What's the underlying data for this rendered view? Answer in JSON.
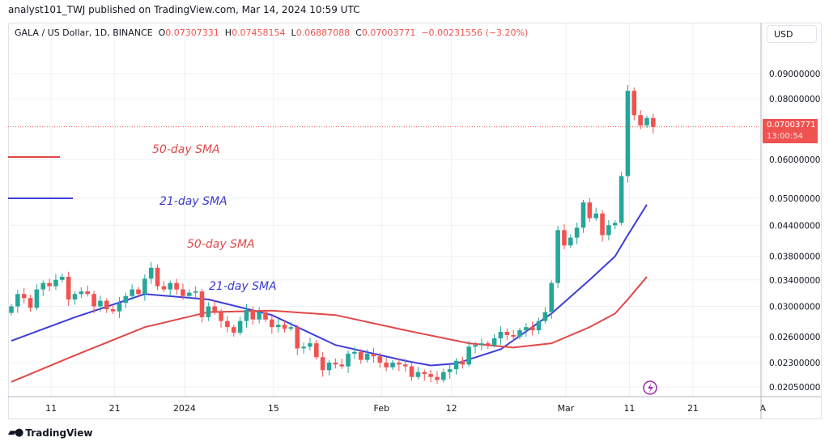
{
  "publisher": "analyst101_TWJ published on TradingView.com, Mar 14, 2024 10:59 UTC",
  "legend": {
    "symbol": "GALA / US Dollar, 1D, BINANCE",
    "o_label": "O",
    "o": "0.07307331",
    "h_label": "H",
    "h": "0.07458154",
    "l_label": "L",
    "l": "0.06887088",
    "c_label": "C",
    "c": "0.07003771",
    "change": "−0.00231556 (−3.20%)"
  },
  "currency": "USD",
  "last_price": {
    "value": "0.07003771",
    "countdown": "13:00:54"
  },
  "footer_brand": "TradingView",
  "colors": {
    "up": "#26a69a",
    "down": "#ef5350",
    "sma21": "#3d3ddb",
    "sma50": "#e04848",
    "grid": "#eef0f4"
  },
  "annotations": [
    {
      "text": "50-day SMA",
      "color": "#e04848"
    },
    {
      "text": "21-day SMA",
      "color": "#3a3acf"
    },
    {
      "text": "50-day SMA",
      "color": "#e04848"
    },
    {
      "text": "21-day SMA",
      "color": "#3a3acf"
    }
  ],
  "chart_data": {
    "type": "candlestick",
    "title": "GALA / US Dollar, 1D, BINANCE",
    "yscale": "log",
    "ylim": [
      0.0195,
      0.1
    ],
    "y_ticks": [
      "0.09000000",
      "0.08000000",
      "0.06000000",
      "0.05000000",
      "0.04400000",
      "0.03800000",
      "0.03400000",
      "0.03000000",
      "0.02600000",
      "0.02300000",
      "0.02050000"
    ],
    "x_ticks": [
      {
        "label": "11",
        "day": 6
      },
      {
        "label": "21",
        "day": 16
      },
      {
        "label": "2024",
        "day": 27
      },
      {
        "label": "15",
        "day": 41
      },
      {
        "label": "Feb",
        "day": 58
      },
      {
        "label": "12",
        "day": 69
      },
      {
        "label": "Mar",
        "day": 87
      },
      {
        "label": "11",
        "day": 97
      },
      {
        "label": "21",
        "day": 107
      },
      {
        "label": "A",
        "day": 118
      }
    ],
    "start_date": "2023-12-05",
    "closes": [
      0.03,
      0.0318,
      0.0312,
      0.0298,
      0.0325,
      0.0335,
      0.033,
      0.034,
      0.0345,
      0.031,
      0.0318,
      0.0322,
      0.0318,
      0.03,
      0.0308,
      0.0296,
      0.0293,
      0.0305,
      0.0315,
      0.0325,
      0.0318,
      0.0342,
      0.036,
      0.033,
      0.0325,
      0.0335,
      0.0325,
      0.0315,
      0.032,
      0.0322,
      0.0285,
      0.03,
      0.0292,
      0.028,
      0.0272,
      0.0265,
      0.028,
      0.0295,
      0.0282,
      0.0292,
      0.0282,
      0.0272,
      0.0275,
      0.027,
      0.0272,
      0.0246,
      0.0248,
      0.0252,
      0.0236,
      0.0222,
      0.023,
      0.0228,
      0.0226,
      0.024,
      0.0242,
      0.0233,
      0.024,
      0.0237,
      0.023,
      0.0225,
      0.023,
      0.0228,
      0.0226,
      0.0215,
      0.022,
      0.0218,
      0.0215,
      0.0212,
      0.022,
      0.0223,
      0.0232,
      0.0228,
      0.0248,
      0.025,
      0.0252,
      0.025,
      0.0258,
      0.0266,
      0.0262,
      0.026,
      0.0268,
      0.0272,
      0.0268,
      0.028,
      0.0292,
      0.0335,
      0.043,
      0.04,
      0.0415,
      0.0435,
      0.049,
      0.0455,
      0.0465,
      0.042,
      0.044,
      0.0445,
      0.0555,
      0.083,
      0.074,
      0.0705,
      0.073,
      0.07
    ],
    "series": [
      {
        "name": "21-day SMA",
        "points": [
          [
            0,
            0.0255
          ],
          [
            10,
            0.0285
          ],
          [
            21,
            0.0318
          ],
          [
            31,
            0.031
          ],
          [
            41,
            0.0288
          ],
          [
            51,
            0.025
          ],
          [
            62,
            0.0232
          ],
          [
            66,
            0.0227
          ],
          [
            70,
            0.0229
          ],
          [
            77,
            0.0245
          ],
          [
            85,
            0.029
          ],
          [
            91,
            0.034
          ],
          [
            95,
            0.038
          ],
          [
            97,
            0.042
          ],
          [
            100,
            0.0485
          ]
        ]
      },
      {
        "name": "50-day SMA",
        "points": [
          [
            0,
            0.021
          ],
          [
            10,
            0.0238
          ],
          [
            21,
            0.0272
          ],
          [
            31,
            0.0292
          ],
          [
            41,
            0.0294
          ],
          [
            51,
            0.0288
          ],
          [
            62,
            0.0268
          ],
          [
            72,
            0.0252
          ],
          [
            79,
            0.0247
          ],
          [
            85,
            0.0252
          ],
          [
            91,
            0.0272
          ],
          [
            95,
            0.029
          ],
          [
            97,
            0.031
          ],
          [
            100,
            0.0345
          ]
        ]
      }
    ]
  }
}
